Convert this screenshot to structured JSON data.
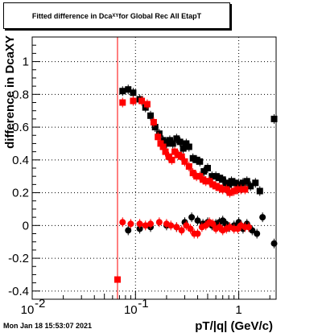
{
  "header": {
    "title_pre": "Fitted difference in Dca",
    "title_sub": "XY",
    "title_post": " for Global Rec All EtapT"
  },
  "footer": {
    "timestamp": "Mon Jan 18 15:53:07 2021"
  },
  "colors": {
    "series_black": "#000000",
    "series_red": "#ff0000",
    "grid": "#000000"
  },
  "chart_data": {
    "type": "scatter",
    "title": "Fitted difference in DcaXY for Global Rec All EtapT",
    "xlabel": "pT/|q| (GeV/c)",
    "ylabel": "difference in DcaXY",
    "xscale": "log",
    "xlim": [
      0.01,
      2.3
    ],
    "ylim": [
      -0.45,
      1.15
    ],
    "grid": true,
    "x_ticks": [
      {
        "value": 0.01,
        "label": "10",
        "exp": "-2"
      },
      {
        "value": 0.1,
        "label": "10",
        "exp": "-1"
      },
      {
        "value": 1,
        "label": "1",
        "exp": ""
      }
    ],
    "y_ticks": [
      -0.4,
      -0.2,
      0,
      0.2,
      0.4,
      0.6,
      0.8,
      1
    ],
    "series": [
      {
        "color": "#000000",
        "marker": "square",
        "points": [
          [
            0.075,
            0.82
          ],
          [
            0.085,
            0.83
          ],
          [
            0.095,
            0.81
          ],
          [
            0.11,
            0.77
          ],
          [
            0.125,
            0.72
          ],
          [
            0.14,
            0.67
          ],
          [
            0.155,
            0.6
          ],
          [
            0.17,
            0.56
          ],
          [
            0.185,
            0.52
          ],
          [
            0.2,
            0.5
          ],
          [
            0.215,
            0.52
          ],
          [
            0.23,
            0.5
          ],
          [
            0.25,
            0.53
          ],
          [
            0.27,
            0.51
          ],
          [
            0.29,
            0.47
          ],
          [
            0.31,
            0.5
          ],
          [
            0.33,
            0.48
          ],
          [
            0.36,
            0.41
          ],
          [
            0.39,
            0.4
          ],
          [
            0.42,
            0.39
          ],
          [
            0.46,
            0.33
          ],
          [
            0.5,
            0.35
          ],
          [
            0.55,
            0.3
          ],
          [
            0.6,
            0.3
          ],
          [
            0.65,
            0.29
          ],
          [
            0.7,
            0.28
          ],
          [
            0.75,
            0.26
          ],
          [
            0.8,
            0.25
          ],
          [
            0.85,
            0.27
          ],
          [
            0.92,
            0.26
          ],
          [
            1.0,
            0.25
          ],
          [
            1.1,
            0.26
          ],
          [
            1.2,
            0.27
          ],
          [
            1.3,
            0.24
          ],
          [
            1.45,
            0.26
          ],
          [
            1.6,
            0.21
          ],
          [
            2.2,
            0.65
          ]
        ]
      },
      {
        "color": "#000000",
        "marker": "circle",
        "points": [
          [
            0.085,
            -0.03
          ],
          [
            0.11,
            -0.02
          ],
          [
            0.14,
            -0.01
          ],
          [
            0.2,
            0.0
          ],
          [
            0.25,
            -0.01
          ],
          [
            0.3,
            0.02
          ],
          [
            0.35,
            0.05
          ],
          [
            0.4,
            0.03
          ],
          [
            0.45,
            0.01
          ],
          [
            0.5,
            0.02
          ],
          [
            0.55,
            0.0
          ],
          [
            0.6,
            0.01
          ],
          [
            0.65,
            0.02
          ],
          [
            0.7,
            0.03
          ],
          [
            0.75,
            0.01
          ],
          [
            0.8,
            -0.01
          ],
          [
            0.9,
            0.0
          ],
          [
            1.0,
            0.02
          ],
          [
            1.1,
            -0.02
          ],
          [
            1.2,
            0.01
          ],
          [
            1.35,
            -0.03
          ],
          [
            1.5,
            -0.05
          ],
          [
            1.7,
            0.05
          ],
          [
            2.2,
            -0.11
          ]
        ]
      },
      {
        "color": "#ff0000",
        "marker": "square",
        "points": [
          [
            0.067,
            -0.33
          ],
          [
            0.075,
            0.75
          ],
          [
            0.095,
            0.76
          ],
          [
            0.115,
            0.76
          ],
          [
            0.13,
            0.74
          ],
          [
            0.15,
            0.63
          ],
          [
            0.165,
            0.54
          ],
          [
            0.175,
            0.5
          ],
          [
            0.185,
            0.48
          ],
          [
            0.195,
            0.45
          ],
          [
            0.21,
            0.42
          ],
          [
            0.225,
            0.4
          ],
          [
            0.24,
            0.45
          ],
          [
            0.26,
            0.43
          ],
          [
            0.28,
            0.42
          ],
          [
            0.3,
            0.39
          ],
          [
            0.33,
            0.36
          ],
          [
            0.36,
            0.32
          ],
          [
            0.39,
            0.3
          ],
          [
            0.42,
            0.3
          ],
          [
            0.45,
            0.28
          ],
          [
            0.48,
            0.27
          ],
          [
            0.52,
            0.27
          ],
          [
            0.56,
            0.25
          ],
          [
            0.6,
            0.24
          ],
          [
            0.65,
            0.23
          ],
          [
            0.7,
            0.22
          ],
          [
            0.76,
            0.22
          ],
          [
            0.82,
            0.2
          ],
          [
            0.9,
            0.21
          ],
          [
            0.98,
            0.22
          ],
          [
            1.05,
            0.22
          ],
          [
            1.15,
            0.22
          ]
        ]
      },
      {
        "color": "#ff0000",
        "marker": "circle",
        "points": [
          [
            0.075,
            0.02
          ],
          [
            0.09,
            0.01
          ],
          [
            0.11,
            0.01
          ],
          [
            0.125,
            0.0
          ],
          [
            0.14,
            0.01
          ],
          [
            0.17,
            0.02
          ],
          [
            0.2,
            0.01
          ],
          [
            0.22,
            0.0
          ],
          [
            0.25,
            -0.01
          ],
          [
            0.28,
            -0.03
          ],
          [
            0.31,
            0.0
          ],
          [
            0.34,
            -0.02
          ],
          [
            0.37,
            -0.05
          ],
          [
            0.4,
            -0.05
          ],
          [
            0.44,
            -0.01
          ],
          [
            0.48,
            0.0
          ],
          [
            0.52,
            0.02
          ],
          [
            0.56,
            0.01
          ],
          [
            0.6,
            -0.02
          ],
          [
            0.65,
            -0.01
          ],
          [
            0.7,
            -0.03
          ],
          [
            0.76,
            -0.02
          ],
          [
            0.82,
            -0.01
          ],
          [
            0.9,
            -0.02
          ],
          [
            0.98,
            -0.02
          ],
          [
            1.05,
            0.0
          ],
          [
            1.15,
            -0.01
          ],
          [
            1.25,
            -0.01
          ]
        ]
      }
    ],
    "vertical_line": {
      "x": 0.067,
      "y_from": -0.45,
      "y_to": 1.15,
      "color": "#ff0000"
    }
  }
}
